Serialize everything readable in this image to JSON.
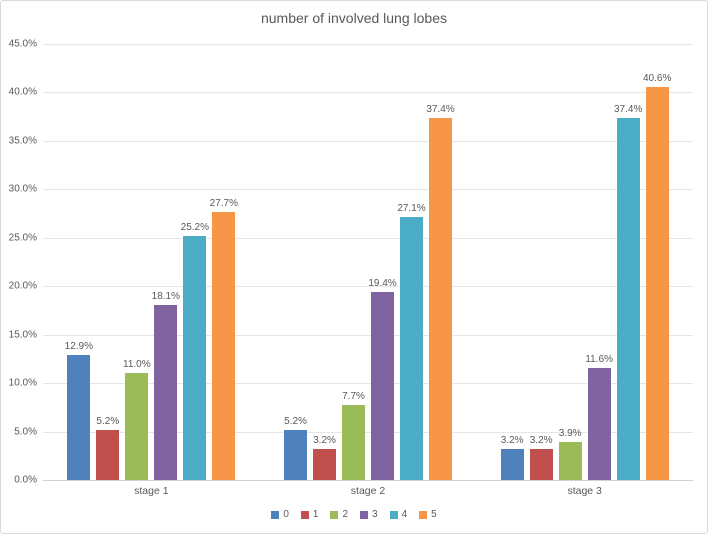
{
  "frame": {
    "background": "#ffffff",
    "border_color": "#d9d9d9"
  },
  "colors": {
    "text": "#595959",
    "gridline": "#e6e6e6",
    "axis_line": "#d2d2d2"
  },
  "chart_data": {
    "type": "bar",
    "title": "number of involved lung lobes",
    "categories": [
      "stage 1",
      "stage 2",
      "stage 3"
    ],
    "series": [
      {
        "name": "0",
        "color": "#4F81BD",
        "values": [
          12.9,
          5.2,
          3.2
        ]
      },
      {
        "name": "1",
        "color": "#C0504D",
        "values": [
          5.2,
          3.2,
          3.2
        ]
      },
      {
        "name": "2",
        "color": "#9BBB59",
        "values": [
          11.0,
          7.7,
          3.9
        ]
      },
      {
        "name": "3",
        "color": "#8064A2",
        "values": [
          18.1,
          19.4,
          11.6
        ]
      },
      {
        "name": "4",
        "color": "#4BACC6",
        "values": [
          25.2,
          27.1,
          37.4
        ]
      },
      {
        "name": "5",
        "color": "#F79646",
        "values": [
          27.7,
          37.4,
          40.6
        ]
      }
    ],
    "ylim": [
      0,
      45
    ],
    "ytick_step": 5,
    "ytick_format": "percent_1dp",
    "ytick_labels": [
      "0.0%",
      "5.0%",
      "10.0%",
      "15.0%",
      "20.0%",
      "25.0%",
      "30.0%",
      "35.0%",
      "40.0%",
      "45.0%"
    ],
    "data_labels": true,
    "grid": true,
    "legend_position": "bottom"
  }
}
